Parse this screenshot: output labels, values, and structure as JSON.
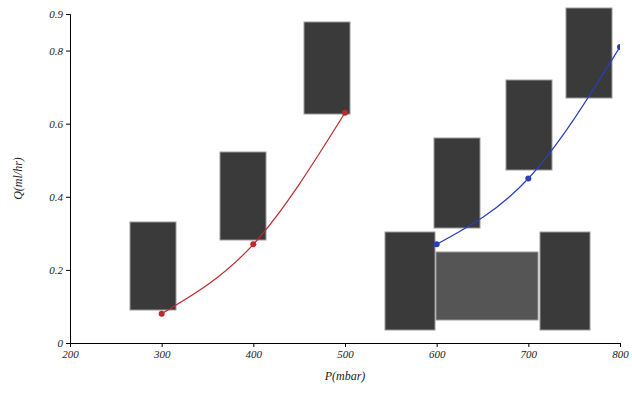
{
  "chart_data": {
    "type": "line",
    "x_label": "P(mbar)",
    "y_label": "Q(ml/hr)",
    "xlim": [
      200,
      800
    ],
    "xticks": [
      200,
      300,
      400,
      500,
      600,
      700,
      800
    ],
    "ylim": [
      0,
      0.9
    ],
    "yticks": [
      0,
      0.2,
      0.4,
      0.6,
      0.8,
      0.9
    ],
    "series": [
      {
        "color": "#c0282d",
        "marker": "circle",
        "x": [
          300,
          400,
          500
        ],
        "values": [
          0.08,
          0.27,
          0.63
        ]
      },
      {
        "color": "#2a3fbf",
        "marker": "circle",
        "x": [
          600,
          700,
          800
        ],
        "values": [
          0.27,
          0.45,
          0.81
        ]
      }
    ]
  }
}
